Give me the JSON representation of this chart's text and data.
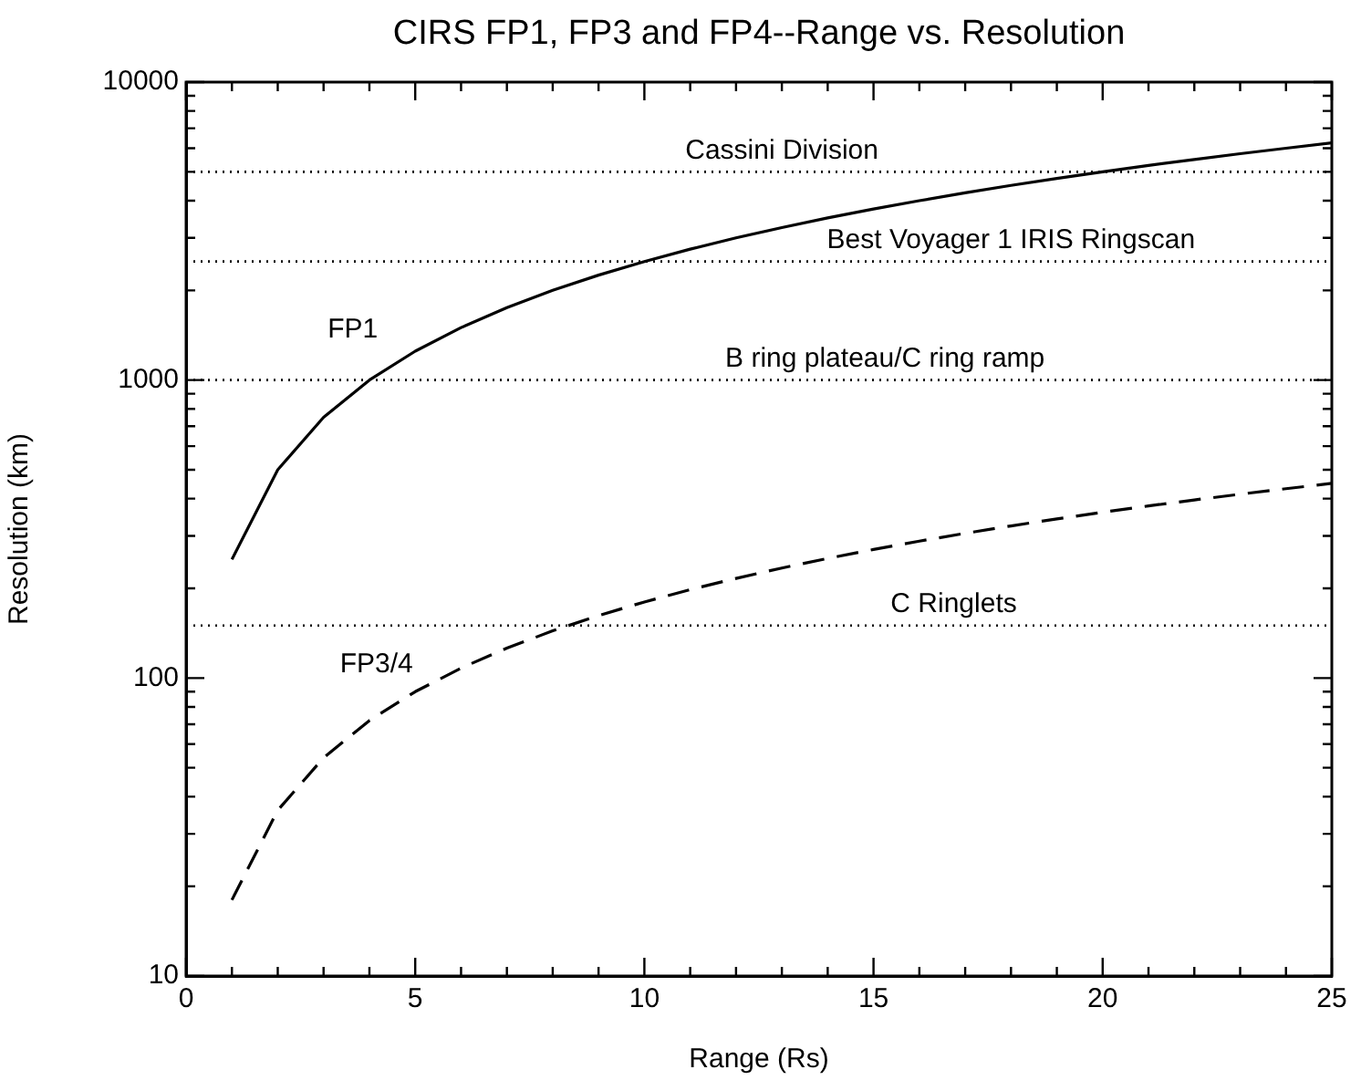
{
  "chart_data": {
    "type": "line",
    "title": "CIRS FP1, FP3 and FP4--Range vs. Resolution",
    "xlabel": "Range (Rs)",
    "ylabel": "Resolution (km)",
    "x": [
      1,
      2,
      3,
      4,
      5,
      6,
      7,
      8,
      9,
      10,
      11,
      12,
      13,
      14,
      15,
      16,
      17,
      18,
      19,
      20,
      21,
      22,
      23,
      24,
      25
    ],
    "series": [
      {
        "name": "FP1",
        "color": "#000000",
        "line_style": "solid",
        "values": [
          250,
          500,
          750,
          1000,
          1250,
          1500,
          1750,
          2000,
          2250,
          2500,
          2750,
          3000,
          3250,
          3500,
          3750,
          4000,
          4250,
          4500,
          4750,
          5000,
          5250,
          5500,
          5750,
          6000,
          6250
        ]
      },
      {
        "name": "FP3/4",
        "color": "#000000",
        "line_style": "dashed",
        "values": [
          18,
          36,
          54,
          72,
          90,
          108,
          126,
          144,
          162,
          180,
          198,
          216,
          234,
          252,
          270,
          288,
          306,
          324,
          342,
          360,
          378,
          396,
          414,
          432,
          450
        ]
      }
    ],
    "log": "y",
    "xlim": [
      0,
      25
    ],
    "ylim": [
      10,
      10000
    ],
    "xticks": [
      0,
      {
        "value": 1,
        "label": null
      },
      {
        "value": 2,
        "label": null
      },
      {
        "value": 3,
        "label": null
      },
      {
        "value": 4,
        "label": null
      },
      5,
      {
        "value": 6,
        "label": null
      },
      {
        "value": 7,
        "label": null
      },
      {
        "value": 8,
        "label": null
      },
      {
        "value": 9,
        "label": null
      },
      10,
      {
        "value": 11,
        "label": null
      },
      {
        "value": 12,
        "label": null
      },
      {
        "value": 13,
        "label": null
      },
      {
        "value": 14,
        "label": null
      },
      15,
      {
        "value": 16,
        "label": null
      },
      {
        "value": 17,
        "label": null
      },
      {
        "value": 18,
        "label": null
      },
      {
        "value": 19,
        "label": null
      },
      20,
      {
        "value": 21,
        "label": null
      },
      {
        "value": 22,
        "label": null
      },
      {
        "value": 23,
        "label": null
      },
      {
        "value": 24,
        "label": null
      },
      25
    ],
    "yticks": [
      10,
      {
        "value": 20,
        "label": null
      },
      {
        "value": 30,
        "label": null
      },
      {
        "value": 40,
        "label": null
      },
      {
        "value": 50,
        "label": null
      },
      {
        "value": 60,
        "label": null
      },
      {
        "value": 70,
        "label": null
      },
      {
        "value": 80,
        "label": null
      },
      {
        "value": 90,
        "label": null
      },
      100,
      {
        "value": 200,
        "label": null
      },
      {
        "value": 300,
        "label": null
      },
      {
        "value": 400,
        "label": null
      },
      {
        "value": 500,
        "label": null
      },
      {
        "value": 600,
        "label": null
      },
      {
        "value": 700,
        "label": null
      },
      {
        "value": 800,
        "label": null
      },
      {
        "value": 900,
        "label": null
      },
      1000,
      {
        "value": 2000,
        "label": null
      },
      {
        "value": 3000,
        "label": null
      },
      {
        "value": 4000,
        "label": null
      },
      {
        "value": 5000,
        "label": null
      },
      {
        "value": 6000,
        "label": null
      },
      {
        "value": 7000,
        "label": null
      },
      {
        "value": 8000,
        "label": null
      },
      {
        "value": 9000,
        "label": null
      },
      10000
    ],
    "ref_lines": [
      {
        "axis": "y",
        "value": 5000,
        "label": "Cassini Division",
        "color": "#000000",
        "line_style": "dotted"
      },
      {
        "axis": "y",
        "value": 2500,
        "label": "Best Voyager 1 IRIS Ringscan",
        "color": "#000000",
        "line_style": "dotted"
      },
      {
        "axis": "y",
        "value": 1000,
        "label": "B ring plateau/C ring ramp",
        "color": "#000000",
        "line_style": "dotted"
      },
      {
        "axis": "y",
        "value": 150,
        "label": "C Ringlets",
        "color": "#000000",
        "line_style": "dotted"
      }
    ],
    "grid": false,
    "legend": false,
    "marker": "none"
  }
}
